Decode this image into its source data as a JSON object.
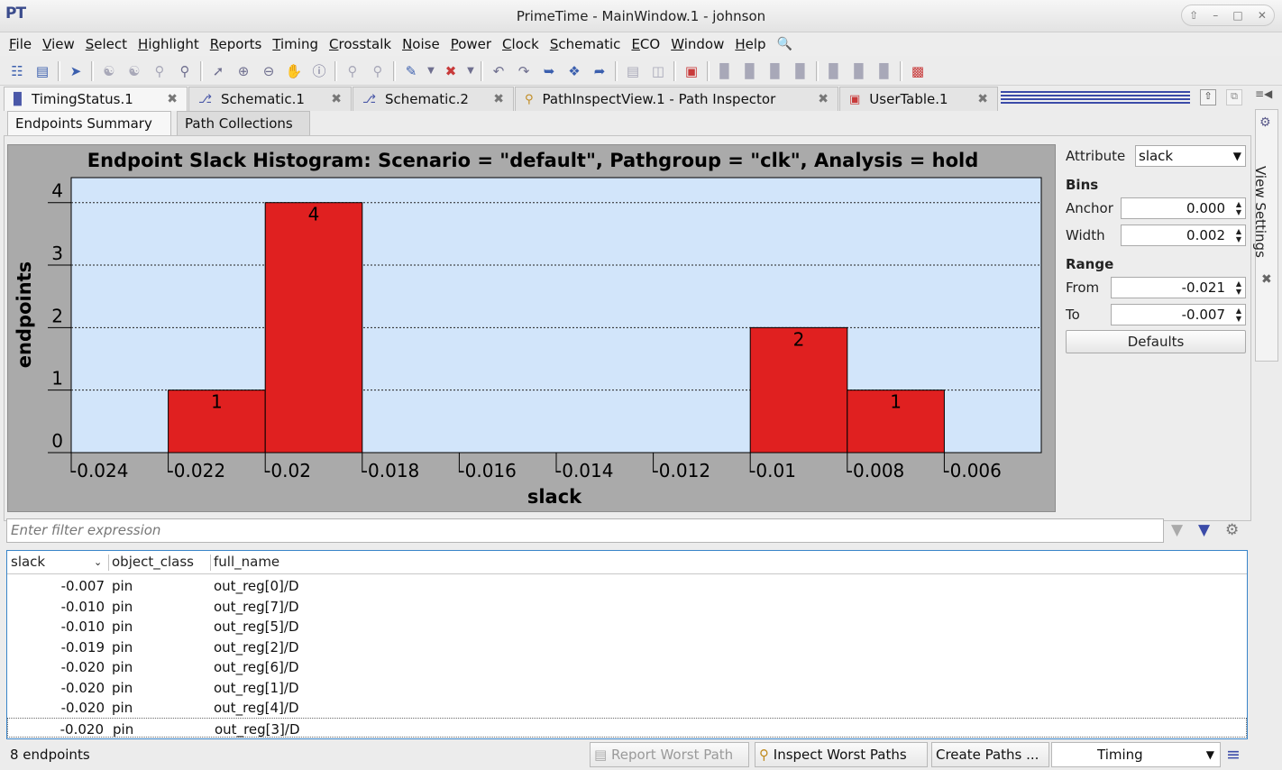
{
  "window": {
    "logo": "PT",
    "title": "PrimeTime - MainWindow.1 - johnson"
  },
  "menu": [
    "File",
    "View",
    "Select",
    "Highlight",
    "Reports",
    "Timing",
    "Crosstalk",
    "Noise",
    "Power",
    "Clock",
    "Schematic",
    "ECO",
    "Window",
    "Help"
  ],
  "tabs": [
    {
      "label": "TimingStatus.1",
      "icon": "histogram-icon"
    },
    {
      "label": "Schematic.1",
      "icon": "schematic-icon"
    },
    {
      "label": "Schematic.2",
      "icon": "schematic-icon"
    },
    {
      "label": "PathInspectView.1 - Path Inspector",
      "icon": "magnifier-icon"
    },
    {
      "label": "UserTable.1",
      "icon": "table-icon"
    }
  ],
  "subtabs": [
    "Endpoints Summary",
    "Path Collections"
  ],
  "chart_data": {
    "type": "bar",
    "title": "Endpoint Slack Histogram: Scenario = \"default\", Pathgroup = \"clk\", Analysis = hold",
    "xlabel": "slack",
    "ylabel": "endpoints",
    "xlim": [
      -0.024,
      -0.004
    ],
    "ylim": [
      0,
      4.4
    ],
    "x_ticks": [
      "-0.024",
      "-0.022",
      "-0.02",
      "-0.018",
      "-0.016",
      "-0.014",
      "-0.012",
      "-0.01",
      "-0.008",
      "-0.006"
    ],
    "y_ticks": [
      "0",
      "1",
      "2",
      "3",
      "4"
    ],
    "bins": [
      {
        "from": -0.022,
        "to": -0.02,
        "value": 1
      },
      {
        "from": -0.02,
        "to": -0.018,
        "value": 4
      },
      {
        "from": -0.01,
        "to": -0.008,
        "value": 2
      },
      {
        "from": -0.008,
        "to": -0.006,
        "value": 1
      }
    ],
    "bar_color": "#e02020",
    "plot_bg": "#d2e5fa",
    "grid": "dotted horizontal"
  },
  "settings": {
    "attribute_label": "Attribute",
    "attribute_value": "slack",
    "bins_heading": "Bins",
    "anchor_label": "Anchor",
    "anchor_value": "0.000",
    "width_label": "Width",
    "width_value": "0.002",
    "range_heading": "Range",
    "from_label": "From",
    "from_value": "-0.021",
    "to_label": "To",
    "to_value": "-0.007",
    "defaults_label": "Defaults"
  },
  "side_panel_title": "View Settings",
  "filter": {
    "placeholder": "Enter filter expression"
  },
  "table": {
    "columns": [
      "slack",
      "object_class",
      "full_name"
    ],
    "rows": [
      {
        "slack": "-0.007",
        "object_class": "pin",
        "full_name": "out_reg[0]/D"
      },
      {
        "slack": "-0.010",
        "object_class": "pin",
        "full_name": "out_reg[7]/D"
      },
      {
        "slack": "-0.010",
        "object_class": "pin",
        "full_name": "out_reg[5]/D"
      },
      {
        "slack": "-0.019",
        "object_class": "pin",
        "full_name": "out_reg[2]/D"
      },
      {
        "slack": "-0.020",
        "object_class": "pin",
        "full_name": "out_reg[6]/D"
      },
      {
        "slack": "-0.020",
        "object_class": "pin",
        "full_name": "out_reg[1]/D"
      },
      {
        "slack": "-0.020",
        "object_class": "pin",
        "full_name": "out_reg[4]/D"
      },
      {
        "slack": "-0.020",
        "object_class": "pin",
        "full_name": "out_reg[3]/D"
      }
    ]
  },
  "status": {
    "count": "8 endpoints",
    "report_worst": "Report Worst Path",
    "inspect_worst": "Inspect Worst Paths",
    "create_paths": "Create Paths ...",
    "mode": "Timing"
  }
}
